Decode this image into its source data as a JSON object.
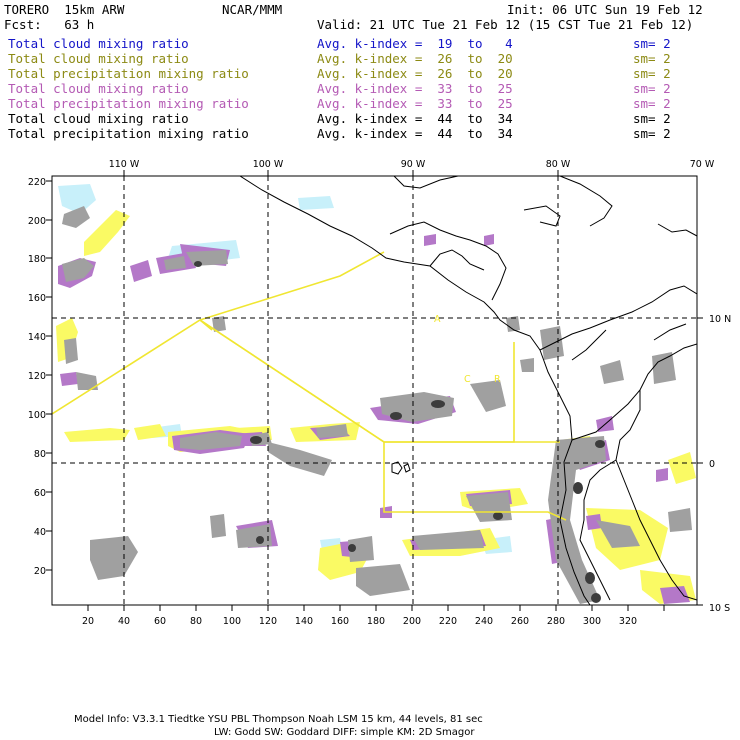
{
  "header": {
    "model": "TORERO  15km ARW",
    "org": "NCAR/MMM",
    "init": "Init: 06 UTC Sun 19 Feb 12",
    "fcst": "Fcst:   63 h",
    "valid": "Valid: 21 UTC Tue 21 Feb 12 (15 CST Tue 21 Feb 12)"
  },
  "legend": [
    {
      "field": "Total cloud mixing ratio",
      "idx": "Avg. k-index =  19  to   4",
      "sm": "sm= 2",
      "color": "#1414c8"
    },
    {
      "field": "Total cloud mixing ratio",
      "idx": "Avg. k-index =  26  to  20",
      "sm": "sm= 2",
      "color": "#8c8a14"
    },
    {
      "field": "Total precipitation mixing ratio",
      "idx": "Avg. k-index =  26  to  20",
      "sm": "sm= 2",
      "color": "#8c8a14"
    },
    {
      "field": "Total cloud mixing ratio",
      "idx": "Avg. k-index =  33  to  25",
      "sm": "sm= 2",
      "color": "#b45ab4"
    },
    {
      "field": "Total precipitation mixing ratio",
      "idx": "Avg. k-index =  33  to  25",
      "sm": "sm= 2",
      "color": "#b45ab4"
    },
    {
      "field": "Total cloud mixing ratio",
      "idx": "Avg. k-index =  44  to  34",
      "sm": "sm= 2",
      "color": "#000000"
    },
    {
      "field": "Total precipitation mixing ratio",
      "idx": "Avg. k-index =  44  to  34",
      "sm": "sm= 2",
      "color": "#000000"
    }
  ],
  "map": {
    "top_lon_labels": [
      "110 W",
      "100 W",
      "90 W",
      "80 W",
      "70 W"
    ],
    "right_lat_labels": [
      "10 N",
      "0",
      "10 S"
    ],
    "x_ticks": [
      "20",
      "40",
      "60",
      "80",
      "100",
      "120",
      "140",
      "160",
      "180",
      "200",
      "220",
      "240",
      "260",
      "280",
      "300",
      "320"
    ],
    "y_ticks": [
      "220",
      "200",
      "180",
      "160",
      "140",
      "120",
      "100",
      "80",
      "60",
      "40",
      "20"
    ],
    "labels": {
      "region_a": "A",
      "region_c": "C",
      "region_r": "R"
    },
    "colors": {
      "light_blue": "#c8f0fa",
      "yellow": "#fafa64",
      "purple": "#b478c8",
      "gray": "#a0a0a0",
      "dark": "#3c3c3c",
      "boundary": "#f0e632"
    }
  },
  "footer": {
    "line1": "Model Info: V3.3.1   Tiedtke YSU PBL  Thompson    Noah LSM  15 km,   44 levels,   81 sec",
    "line2": "LW: Godd SW: Goddard DIFF: simple KM: 2D Smagor"
  }
}
